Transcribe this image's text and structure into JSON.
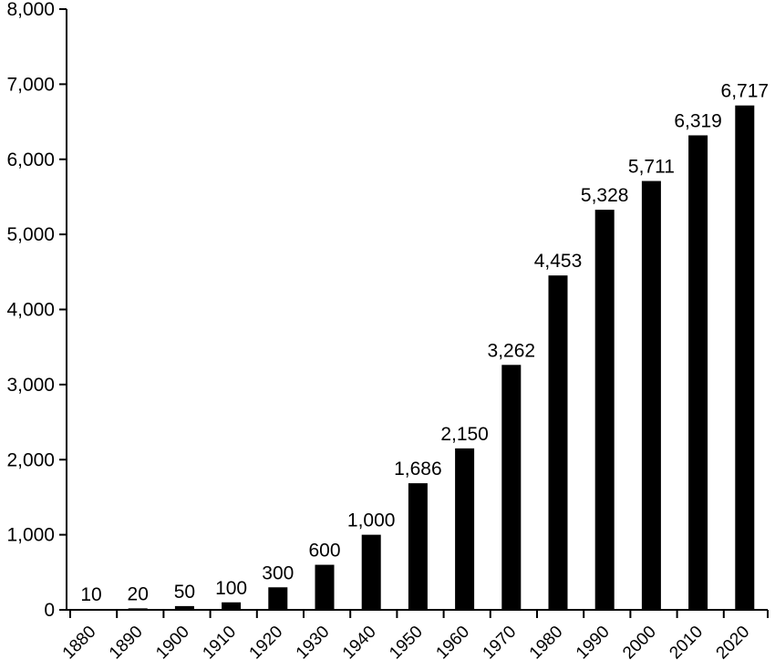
{
  "chart_data": {
    "type": "bar",
    "title": "",
    "xlabel": "",
    "ylabel": "",
    "categories": [
      "1880",
      "1890",
      "1900",
      "1910",
      "1920",
      "1930",
      "1940",
      "1950",
      "1960",
      "1970",
      "1980",
      "1990",
      "2000",
      "2010",
      "2020"
    ],
    "values": [
      10,
      20,
      50,
      100,
      300,
      600,
      1000,
      1686,
      2150,
      3262,
      4453,
      5328,
      5711,
      6319,
      6717
    ],
    "data_labels": [
      "10",
      "20",
      "50",
      "100",
      "300",
      "600",
      "1,000",
      "1,686",
      "2,150",
      "3,262",
      "4,453",
      "5,328",
      "5,711",
      "6,319",
      "6,717"
    ],
    "ylim": [
      0,
      8000
    ],
    "yticks": [
      0,
      1000,
      2000,
      3000,
      4000,
      5000,
      6000,
      7000,
      8000
    ],
    "ytick_labels": [
      "0",
      "1,000",
      "2,000",
      "3,000",
      "4,000",
      "5,000",
      "6,000",
      "7,000",
      "8,000"
    ],
    "grid": false,
    "legend": "none",
    "bar_color": "#000000",
    "axis_color": "#000000"
  }
}
